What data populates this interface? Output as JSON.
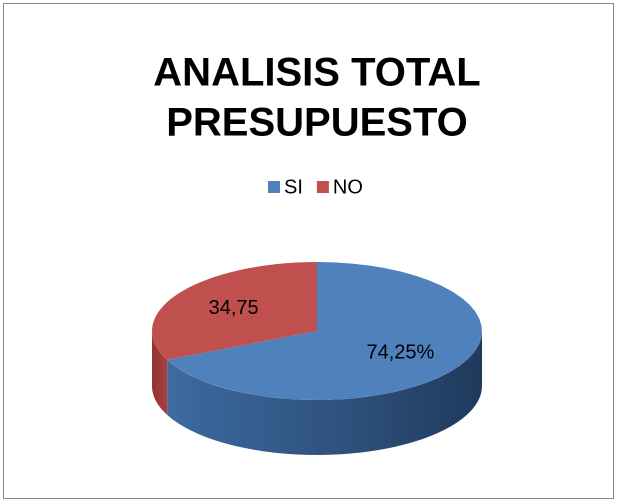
{
  "chart_data": {
    "type": "pie3d",
    "title": "ANALISIS TOTAL PRESUPUESTO",
    "categories": [
      "SI",
      "NO"
    ],
    "values": [
      74.25,
      34.75
    ],
    "value_labels": [
      "74,25%",
      "34,75"
    ],
    "colors": [
      "#4f81bd",
      "#c0504d"
    ],
    "legend": "top"
  }
}
